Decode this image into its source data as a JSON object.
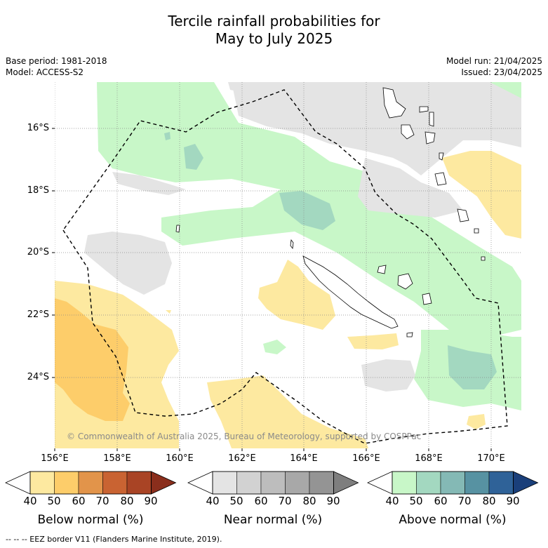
{
  "header": {
    "title_line1": "Tercile rainfall probabilities for",
    "title_line2": "May to July 2025",
    "base_period": "Base period: 1981-2018",
    "model": "Model: ACCESS-S2",
    "model_run": "Model run: 21/04/2025",
    "issued": "Issued: 23/04/2025"
  },
  "map": {
    "lat_labels": [
      "16°S",
      "18°S",
      "20°S",
      "22°S",
      "24°S"
    ],
    "lon_labels": [
      "156°E",
      "158°E",
      "160°E",
      "162°E",
      "164°E",
      "166°E",
      "168°E",
      "170°E"
    ],
    "copyright": "© Commonwealth of Australia 2025, Bureau of Meteorology, supported by COSPPac",
    "colors": {
      "below": [
        "#fde9a0",
        "#fdcd6a",
        "#e2944a",
        "#c96332",
        "#a94425",
        "#8a2e1c"
      ],
      "near": [
        "#e4e4e4",
        "#d2d2d2",
        "#bdbdbd",
        "#a8a8a8",
        "#949494",
        "#7e7e7e"
      ],
      "above": [
        "#c8f7c8",
        "#a3d8c0",
        "#84b9b5",
        "#5792a2",
        "#2f6298",
        "#1a3f7a"
      ]
    }
  },
  "colorbars": [
    {
      "title": "Below normal (%)",
      "ticks": [
        "40",
        "50",
        "60",
        "70",
        "80",
        "90"
      ]
    },
    {
      "title": "Near normal (%)",
      "ticks": [
        "40",
        "50",
        "60",
        "70",
        "80",
        "90"
      ]
    },
    {
      "title": "Above normal (%)",
      "ticks": [
        "40",
        "50",
        "60",
        "70",
        "80",
        "90"
      ]
    }
  ],
  "footer": {
    "legend": "--  --  -- EEZ border V11 (Flanders Marine Institute, 2019)."
  }
}
